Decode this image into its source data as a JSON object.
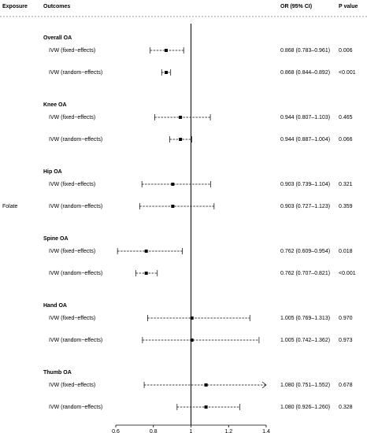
{
  "chart_data": {
    "type": "forest",
    "columns": {
      "exposure": "Exposure",
      "outcomes": "Outcomes",
      "estimate": "OR (95% CI)",
      "p": "P value"
    },
    "exposure": "Folate",
    "null_value": 1,
    "xlim": [
      0.6,
      1.4
    ],
    "xticks": [
      0.6,
      0.8,
      1,
      1.2,
      1.4
    ],
    "color": "#000000",
    "groups": [
      {
        "name": "Overall OA",
        "rows": [
          {
            "method": "IVW (fixed−effects)",
            "or": 0.868,
            "lo": 0.783,
            "hi": 0.961,
            "label": "0.868 (0.783–0.961)",
            "p": "0.006"
          },
          {
            "method": "IVW (random−effects)",
            "or": 0.868,
            "lo": 0.844,
            "hi": 0.892,
            "label": "0.868 (0.844–0.892)",
            "p": "<0.001"
          }
        ]
      },
      {
        "name": "Knee OA",
        "rows": [
          {
            "method": "IVW (fixed−effects)",
            "or": 0.944,
            "lo": 0.807,
            "hi": 1.103,
            "label": "0.944 (0.807–1.103)",
            "p": "0.465"
          },
          {
            "method": "IVW (random−effects)",
            "or": 0.944,
            "lo": 0.887,
            "hi": 1.004,
            "label": "0.944 (0.887–1.004)",
            "p": "0.066"
          }
        ]
      },
      {
        "name": "Hip OA",
        "rows": [
          {
            "method": "IVW (fixed−effects)",
            "or": 0.903,
            "lo": 0.739,
            "hi": 1.104,
            "label": "0.903 (0.739–1.104)",
            "p": "0.321"
          },
          {
            "method": "IVW (random−effects)",
            "or": 0.903,
            "lo": 0.727,
            "hi": 1.123,
            "label": "0.903 (0.727–1.123)",
            "p": "0.359"
          }
        ]
      },
      {
        "name": "Spine OA",
        "rows": [
          {
            "method": "IVW (fixed−effects)",
            "or": 0.762,
            "lo": 0.609,
            "hi": 0.954,
            "label": "0.762 (0.609–0.954)",
            "p": "0.018"
          },
          {
            "method": "IVW (random−effects)",
            "or": 0.762,
            "lo": 0.707,
            "hi": 0.821,
            "label": "0.762 (0.707–0.821)",
            "p": "<0.001"
          }
        ]
      },
      {
        "name": "Hand OA",
        "rows": [
          {
            "method": "IVW (fixed−effects)",
            "or": 1.005,
            "lo": 0.769,
            "hi": 1.313,
            "label": "1.005 (0.769–1.313)",
            "p": "0.970"
          },
          {
            "method": "IVW (random−effects)",
            "or": 1.005,
            "lo": 0.742,
            "hi": 1.362,
            "label": "1.005 (0.742–1.362)",
            "p": "0.973"
          }
        ]
      },
      {
        "name": "Thumb OA",
        "rows": [
          {
            "method": "IVW (fixed−effects)",
            "or": 1.08,
            "lo": 0.751,
            "hi": 1.552,
            "label": "1.080 (0.751–1.552)",
            "p": "0.678"
          },
          {
            "method": "IVW (random−effects)",
            "or": 1.08,
            "lo": 0.926,
            "hi": 1.26,
            "label": "1.080 (0.926–1.260)",
            "p": "0.328"
          }
        ]
      }
    ]
  }
}
